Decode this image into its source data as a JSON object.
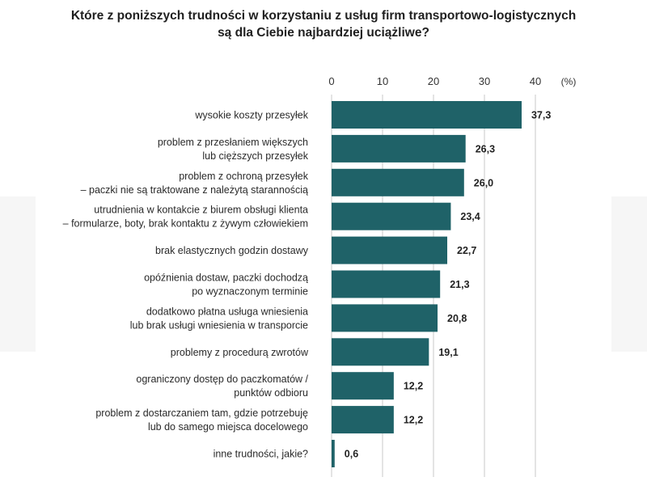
{
  "chart_data": {
    "type": "bar",
    "orientation": "horizontal",
    "title_lines": [
      "Które z poniższych trudności w korzystaniu z usług firm transportowo-logistycznych",
      "są dla Ciebie najbardziej uciążliwe?"
    ],
    "unit_label": "(%)",
    "xlim": [
      0,
      40
    ],
    "ticks": [
      0,
      10,
      20,
      30,
      40
    ],
    "grid": true,
    "bar_color": "#1f6268",
    "categories": [
      [
        "wysokie koszty przesyłek"
      ],
      [
        "problem z przesłaniem większych",
        "lub cięższych przesyłek"
      ],
      [
        "problem z ochroną przesyłek",
        "– paczki nie są traktowane z należytą starannością"
      ],
      [
        "utrudnienia w kontakcie z biurem obsługi klienta",
        "– formularze, boty, brak kontaktu z żywym człowiekiem"
      ],
      [
        "brak elastycznych godzin dostawy"
      ],
      [
        "opóźnienia dostaw, paczki dochodzą",
        "po wyznaczonym terminie"
      ],
      [
        "dodatkowo płatna usługa wniesienia",
        "lub brak usługi wniesienia w transporcie"
      ],
      [
        "problemy z procedurą zwrotów"
      ],
      [
        "ograniczony dostęp do paczkomatów /",
        "punktów odbioru"
      ],
      [
        "problem z dostarczaniem tam, gdzie potrzebuję",
        "lub do samego miejsca docelowego"
      ],
      [
        "inne trudności, jakie?"
      ]
    ],
    "values": [
      37.3,
      26.3,
      26.0,
      23.4,
      22.7,
      21.3,
      20.8,
      19.1,
      12.2,
      12.2,
      0.6
    ],
    "value_labels": [
      "37,3",
      "26,3",
      "26,0",
      "23,4",
      "22,7",
      "21,3",
      "20,8",
      "19,1",
      "12,2",
      "12,2",
      "0,6"
    ]
  }
}
